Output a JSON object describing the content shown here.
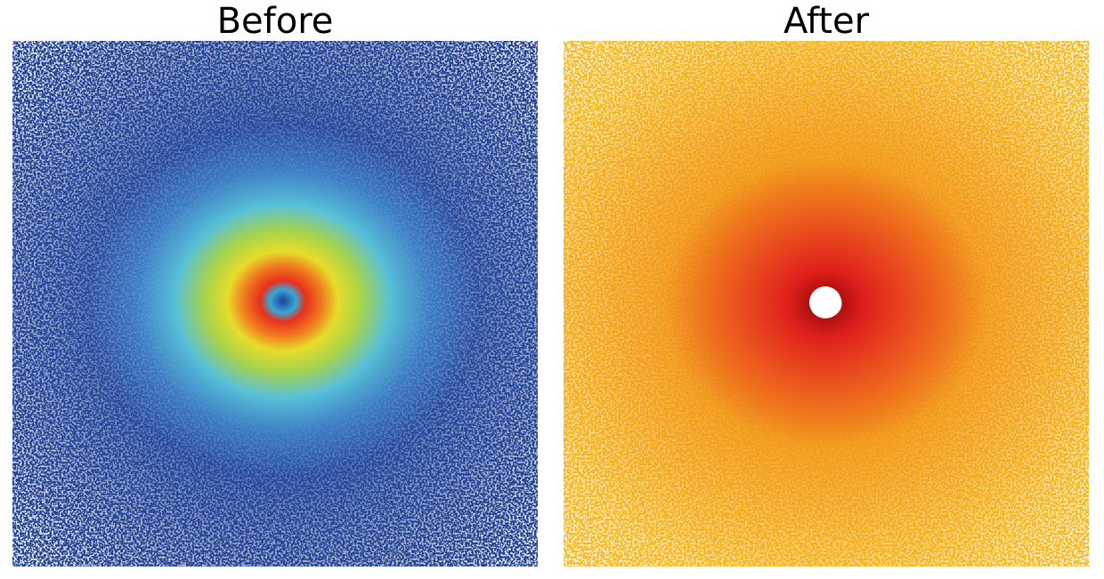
{
  "panels": [
    {
      "title": "Before"
    },
    {
      "title": "After"
    }
  ]
}
